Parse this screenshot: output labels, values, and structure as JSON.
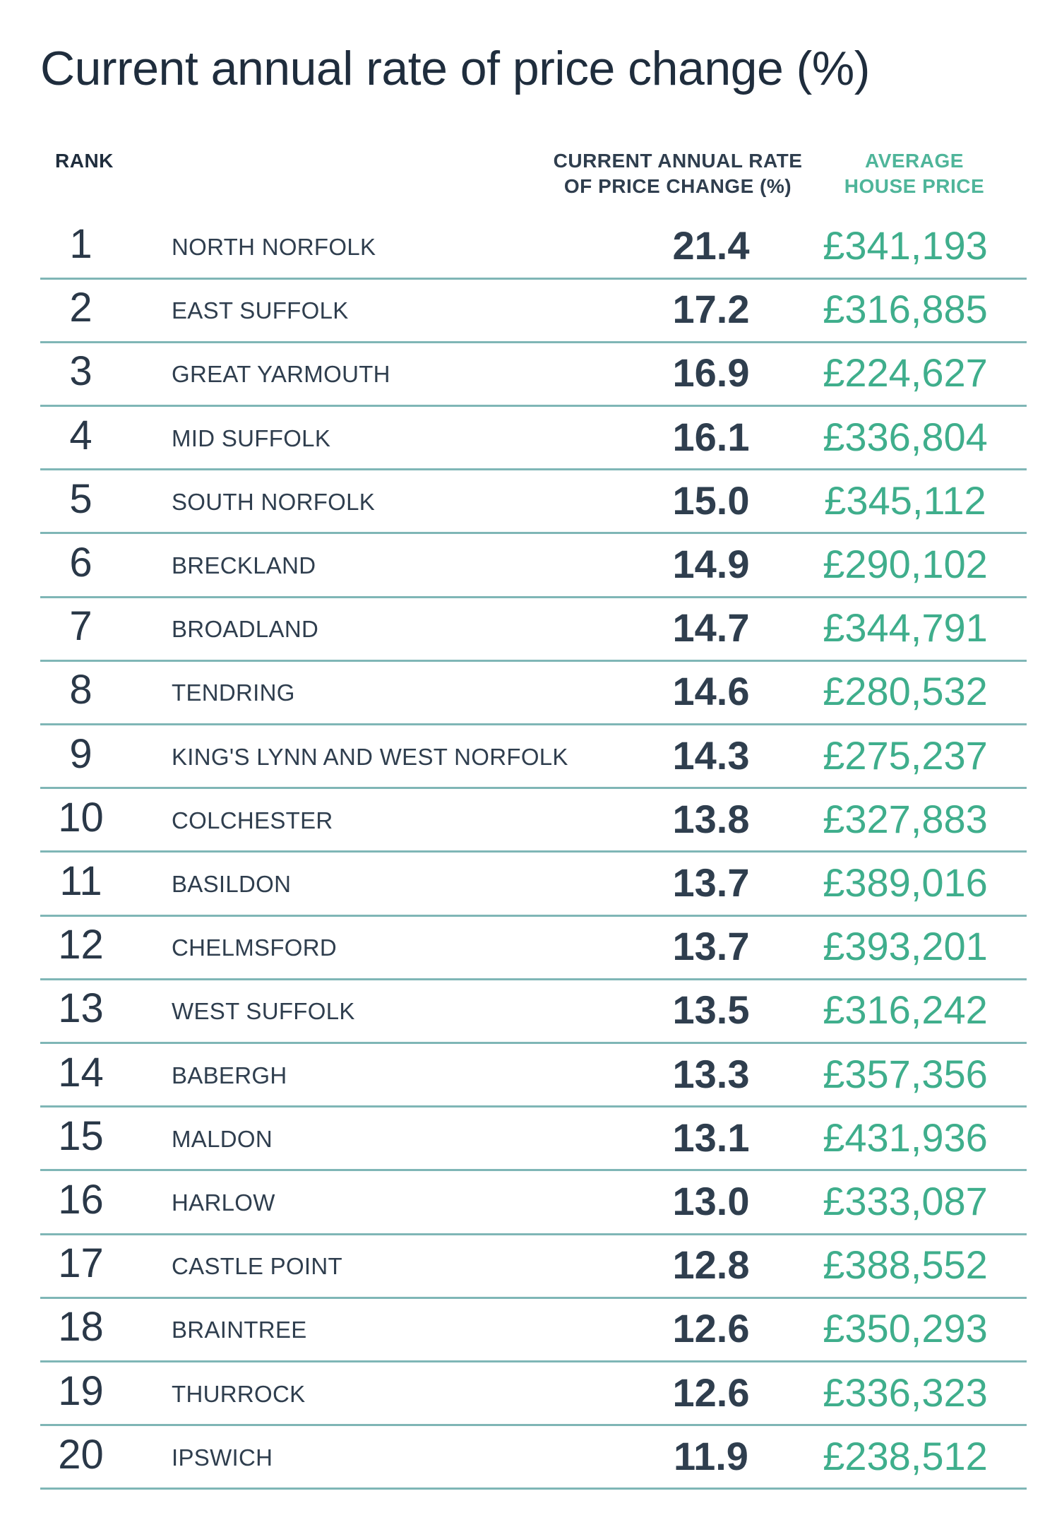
{
  "title": "Current annual rate of price change (%)",
  "headers": {
    "rank": "RANK",
    "rate": "CURRENT ANNUAL RATE\nOF PRICE CHANGE (%)",
    "price": "AVERAGE\nHOUSE PRICE"
  },
  "colors": {
    "text_dark": "#2f3e4e",
    "accent_green": "#3fae8c",
    "rule_teal": "#7fb6b6"
  },
  "chart_data": {
    "type": "table",
    "title": "Current annual rate of price change (%)",
    "columns": [
      "RANK",
      "",
      "CURRENT ANNUAL RATE OF PRICE CHANGE (%)",
      "AVERAGE HOUSE PRICE"
    ],
    "rows": [
      {
        "rank": "1",
        "area": "NORTH NORFOLK",
        "rate": "21.4",
        "price": "£341,193"
      },
      {
        "rank": "2",
        "area": "EAST SUFFOLK",
        "rate": "17.2",
        "price": "£316,885"
      },
      {
        "rank": "3",
        "area": "GREAT YARMOUTH",
        "rate": "16.9",
        "price": "£224,627"
      },
      {
        "rank": "4",
        "area": "MID SUFFOLK",
        "rate": "16.1",
        "price": "£336,804"
      },
      {
        "rank": "5",
        "area": "SOUTH NORFOLK",
        "rate": "15.0",
        "price": "£345,112"
      },
      {
        "rank": "6",
        "area": "BRECKLAND",
        "rate": "14.9",
        "price": "£290,102"
      },
      {
        "rank": "7",
        "area": "BROADLAND",
        "rate": "14.7",
        "price": "£344,791"
      },
      {
        "rank": "8",
        "area": "TENDRING",
        "rate": "14.6",
        "price": "£280,532"
      },
      {
        "rank": "9",
        "area": "KING'S LYNN AND WEST NORFOLK",
        "rate": "14.3",
        "price": "£275,237"
      },
      {
        "rank": "10",
        "area": "COLCHESTER",
        "rate": "13.8",
        "price": "£327,883"
      },
      {
        "rank": "11",
        "area": "BASILDON",
        "rate": "13.7",
        "price": "£389,016"
      },
      {
        "rank": "12",
        "area": "CHELMSFORD",
        "rate": "13.7",
        "price": "£393,201"
      },
      {
        "rank": "13",
        "area": "WEST SUFFOLK",
        "rate": "13.5",
        "price": "£316,242"
      },
      {
        "rank": "14",
        "area": "BABERGH",
        "rate": "13.3",
        "price": "£357,356"
      },
      {
        "rank": "15",
        "area": "MALDON",
        "rate": "13.1",
        "price": "£431,936"
      },
      {
        "rank": "16",
        "area": "HARLOW",
        "rate": "13.0",
        "price": "£333,087"
      },
      {
        "rank": "17",
        "area": "CASTLE POINT",
        "rate": "12.8",
        "price": "£388,552"
      },
      {
        "rank": "18",
        "area": "BRAINTREE",
        "rate": "12.6",
        "price": "£350,293"
      },
      {
        "rank": "19",
        "area": "THURROCK",
        "rate": "12.6",
        "price": "£336,323"
      },
      {
        "rank": "20",
        "area": "IPSWICH",
        "rate": "11.9",
        "price": "£238,512"
      }
    ]
  }
}
